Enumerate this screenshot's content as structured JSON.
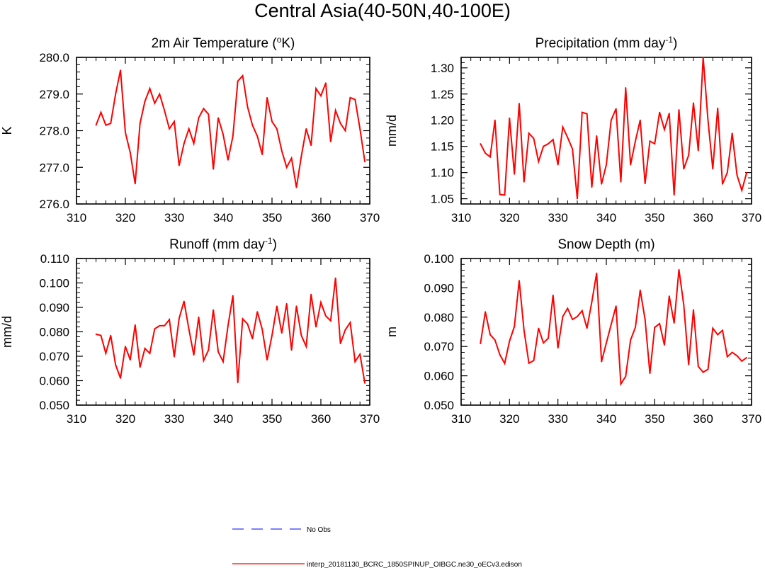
{
  "figure": {
    "title": "Central Asia(40-50N,40-100E)"
  },
  "colors": {
    "model_line": "#ff0000",
    "obs_line": "#3333ff",
    "axis": "#000000"
  },
  "legend": {
    "items": [
      {
        "label": "No Obs",
        "style": "dashed",
        "color": "#3333ff"
      },
      {
        "label": "interp_20181130_BCRC_1850SPINUP_OIBGC.ne30_oECv3.edison",
        "style": "solid",
        "color": "#ff0000"
      }
    ]
  },
  "chart_data": [
    {
      "type": "line",
      "title": "2m Air Temperature (",
      "title_sup": "o",
      "title_tail": "K)",
      "ylabel": "K",
      "xlabel": "",
      "xlim": [
        310,
        370
      ],
      "ylim": [
        276.0,
        280.0
      ],
      "xticks": [
        "310",
        "320",
        "330",
        "340",
        "350",
        "360",
        "370"
      ],
      "yticks": [
        "276.0",
        "277.0",
        "278.0",
        "279.0",
        "280.0"
      ],
      "series": [
        {
          "name": "interp_20181130_BCRC_1850SPINUP_OIBGC.ne30_oECv3.edison",
          "x": [
            314,
            315,
            316,
            317,
            318,
            319,
            320,
            321,
            322,
            323,
            324,
            325,
            326,
            327,
            328,
            329,
            330,
            331,
            332,
            333,
            334,
            335,
            336,
            337,
            338,
            339,
            340,
            341,
            342,
            343,
            344,
            345,
            346,
            347,
            348,
            349,
            350,
            351,
            352,
            353,
            354,
            355,
            356,
            357,
            358,
            359,
            360,
            361,
            362,
            363,
            364,
            365,
            366,
            367,
            368,
            369
          ],
          "values": [
            278.15,
            278.5,
            278.15,
            278.2,
            279.0,
            279.65,
            277.95,
            277.4,
            276.55,
            278.2,
            278.8,
            279.15,
            278.75,
            279.0,
            278.55,
            278.05,
            278.25,
            277.05,
            277.65,
            278.05,
            277.65,
            278.35,
            278.6,
            278.45,
            276.95,
            278.35,
            277.9,
            277.2,
            277.85,
            279.35,
            279.5,
            278.65,
            278.15,
            277.85,
            277.35,
            278.9,
            278.25,
            278.05,
            277.45,
            277.0,
            277.25,
            276.45,
            277.3,
            278.05,
            277.6,
            279.15,
            278.95,
            279.3,
            277.7,
            278.55,
            278.2,
            278.0,
            278.9,
            278.85,
            278.05,
            277.15
          ]
        }
      ]
    },
    {
      "type": "line",
      "title": "Precipitation (mm day",
      "title_sup": "-1",
      "title_tail": ")",
      "ylabel": "mm/d",
      "xlabel": "",
      "xlim": [
        310,
        370
      ],
      "ylim": [
        1.04,
        1.32
      ],
      "xticks": [
        "310",
        "320",
        "330",
        "340",
        "350",
        "360",
        "370"
      ],
      "yticks": [
        "1.05",
        "1.10",
        "1.15",
        "1.20",
        "1.25",
        "1.30"
      ],
      "series": [
        {
          "name": "interp_20181130_BCRC_1850SPINUP_OIBGC.ne30_oECv3.edison",
          "x": [
            314,
            315,
            316,
            317,
            318,
            319,
            320,
            321,
            322,
            323,
            324,
            325,
            326,
            327,
            328,
            329,
            330,
            331,
            332,
            333,
            334,
            335,
            336,
            337,
            338,
            339,
            340,
            341,
            342,
            343,
            344,
            345,
            346,
            347,
            348,
            349,
            350,
            351,
            352,
            353,
            354,
            355,
            356,
            357,
            358,
            359,
            360,
            361,
            362,
            363,
            364,
            365,
            366,
            367,
            368,
            369
          ],
          "values": [
            1.155,
            1.137,
            1.13,
            1.2,
            1.058,
            1.057,
            1.204,
            1.097,
            1.232,
            1.082,
            1.175,
            1.165,
            1.121,
            1.15,
            1.155,
            1.163,
            1.115,
            1.187,
            1.167,
            1.145,
            1.05,
            1.215,
            1.212,
            1.072,
            1.17,
            1.078,
            1.115,
            1.2,
            1.222,
            1.082,
            1.262,
            1.115,
            1.16,
            1.2,
            1.079,
            1.16,
            1.155,
            1.215,
            1.182,
            1.213,
            1.057,
            1.22,
            1.107,
            1.133,
            1.233,
            1.142,
            1.32,
            1.2,
            1.107,
            1.223,
            1.078,
            1.1,
            1.175,
            1.095,
            1.066,
            1.1
          ]
        }
      ]
    },
    {
      "type": "line",
      "title": "Runoff (mm day",
      "title_sup": "-1",
      "title_tail": ")",
      "ylabel": "mm/d",
      "xlabel": "",
      "xlim": [
        310,
        370
      ],
      "ylim": [
        0.05,
        0.11
      ],
      "xticks": [
        "310",
        "320",
        "330",
        "340",
        "350",
        "360",
        "370"
      ],
      "yticks": [
        "0.050",
        "0.060",
        "0.070",
        "0.080",
        "0.090",
        "0.100",
        "0.110"
      ],
      "series": [
        {
          "name": "interp_20181130_BCRC_1850SPINUP_OIBGC.ne30_oECv3.edison",
          "x": [
            314,
            315,
            316,
            317,
            318,
            319,
            320,
            321,
            322,
            323,
            324,
            325,
            326,
            327,
            328,
            329,
            330,
            331,
            332,
            333,
            334,
            335,
            336,
            337,
            338,
            339,
            340,
            341,
            342,
            343,
            344,
            345,
            346,
            347,
            348,
            349,
            350,
            351,
            352,
            353,
            354,
            355,
            356,
            357,
            358,
            359,
            360,
            361,
            362,
            363,
            364,
            365,
            366,
            367,
            368,
            369
          ],
          "values": [
            0.079,
            0.0785,
            0.0712,
            0.0785,
            0.0665,
            0.061,
            0.074,
            0.0685,
            0.0828,
            0.0655,
            0.0732,
            0.0712,
            0.0812,
            0.0825,
            0.0825,
            0.085,
            0.0698,
            0.0855,
            0.0925,
            0.081,
            0.0705,
            0.086,
            0.0682,
            0.0725,
            0.089,
            0.0718,
            0.0678,
            0.0825,
            0.0948,
            0.0592,
            0.0853,
            0.0832,
            0.0772,
            0.0882,
            0.081,
            0.0685,
            0.0785,
            0.0905,
            0.0795,
            0.0915,
            0.0725,
            0.0905,
            0.0785,
            0.074,
            0.0953,
            0.082,
            0.092,
            0.0865,
            0.0845,
            0.102,
            0.0752,
            0.0808,
            0.0838,
            0.0678,
            0.0708,
            0.059
          ]
        }
      ]
    },
    {
      "type": "line",
      "title": "Snow Depth (m)",
      "title_sup": "",
      "title_tail": "",
      "ylabel": "m",
      "xlabel": "",
      "xlim": [
        310,
        370
      ],
      "ylim": [
        0.05,
        0.1
      ],
      "xticks": [
        "310",
        "320",
        "330",
        "340",
        "350",
        "360",
        "370"
      ],
      "yticks": [
        "0.050",
        "0.060",
        "0.070",
        "0.080",
        "0.090",
        "0.100"
      ],
      "series": [
        {
          "name": "interp_20181130_BCRC_1850SPINUP_OIBGC.ne30_oECv3.edison",
          "x": [
            314,
            315,
            316,
            317,
            318,
            319,
            320,
            321,
            322,
            323,
            324,
            325,
            326,
            327,
            328,
            329,
            330,
            331,
            332,
            333,
            334,
            335,
            336,
            337,
            338,
            339,
            340,
            341,
            342,
            343,
            344,
            345,
            346,
            347,
            348,
            349,
            350,
            351,
            352,
            353,
            354,
            355,
            356,
            357,
            358,
            359,
            360,
            361,
            362,
            363,
            364,
            365,
            366,
            367,
            368,
            369
          ],
          "values": [
            0.071,
            0.0818,
            0.074,
            0.0722,
            0.0672,
            0.0642,
            0.0718,
            0.0768,
            0.0925,
            0.0755,
            0.0643,
            0.0652,
            0.0762,
            0.0712,
            0.0728,
            0.0875,
            0.0695,
            0.0802,
            0.083,
            0.0792,
            0.0802,
            0.0822,
            0.0762,
            0.0852,
            0.095,
            0.0648,
            0.0712,
            0.0775,
            0.0838,
            0.0572,
            0.0598,
            0.0722,
            0.0765,
            0.0892,
            0.0792,
            0.0608,
            0.0765,
            0.0778,
            0.0705,
            0.0872,
            0.078,
            0.0962,
            0.0842,
            0.0638,
            0.0825,
            0.0632,
            0.0612,
            0.0622,
            0.0762,
            0.074,
            0.0755,
            0.0665,
            0.068,
            0.0668,
            0.065,
            0.0662
          ]
        }
      ]
    }
  ]
}
